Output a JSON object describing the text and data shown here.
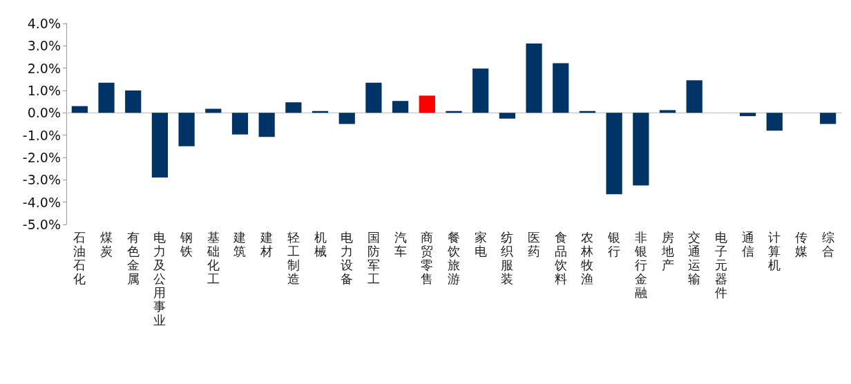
{
  "chart_data": {
    "type": "bar",
    "categories": [
      "石油石化",
      "煤炭",
      "有色金属",
      "电力及公用事业",
      "钢铁",
      "基础化工",
      "建筑",
      "建材",
      "轻工制造",
      "机械",
      "电力设备",
      "国防军工",
      "汽车",
      "商贸零售",
      "餐饮旅游",
      "家电",
      "纺织服装",
      "医药",
      "食品饮料",
      "农林牧渔",
      "银行",
      "非银行金融",
      "房地产",
      "交通运输",
      "电子元器件",
      "通信",
      "计算机",
      "传媒",
      "综合"
    ],
    "values": [
      0.3,
      1.35,
      1.0,
      -2.9,
      -1.5,
      0.18,
      -0.97,
      -1.08,
      0.47,
      0.08,
      -0.5,
      1.35,
      0.53,
      0.77,
      0.08,
      1.98,
      -0.26,
      3.1,
      2.22,
      0.08,
      -3.65,
      -3.25,
      0.12,
      1.46,
      0,
      -0.15,
      -0.8,
      0,
      -0.5
    ],
    "colors": [
      "#003366",
      "#003366",
      "#003366",
      "#003366",
      "#003366",
      "#003366",
      "#003366",
      "#003366",
      "#003366",
      "#003366",
      "#003366",
      "#003366",
      "#003366",
      "#ff0000",
      "#003366",
      "#003366",
      "#003366",
      "#003366",
      "#003366",
      "#003366",
      "#003366",
      "#003366",
      "#003366",
      "#003366",
      "#003366",
      "#003366",
      "#003366",
      "#003366",
      "#003366"
    ],
    "ylim": [
      -5,
      4
    ],
    "yticks": [
      {
        "value": -5,
        "label": "-5.0%"
      },
      {
        "value": -4,
        "label": "-4.0%"
      },
      {
        "value": -3,
        "label": "-3.0%"
      },
      {
        "value": -2,
        "label": "-2.0%"
      },
      {
        "value": -1,
        "label": "-1.0%"
      },
      {
        "value": 0,
        "label": "0.0%"
      },
      {
        "value": 1,
        "label": "1.0%"
      },
      {
        "value": 2,
        "label": "2.0%"
      },
      {
        "value": 3,
        "label": "3.0%"
      },
      {
        "value": 4,
        "label": "4.0%"
      }
    ],
    "orientation": "vertical"
  }
}
